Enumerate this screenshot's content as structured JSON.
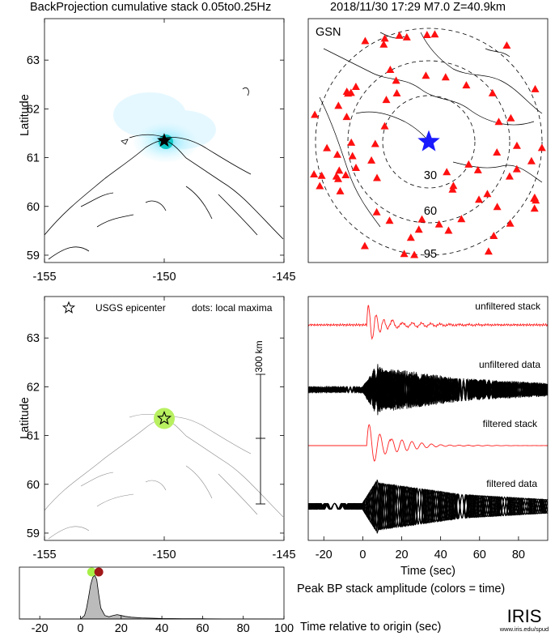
{
  "header": {
    "left_title": "BackProjection cumulative stack 0.05to0.25Hz",
    "right_title": "2018/11/30 17:29  M7.0  Z=40.9km"
  },
  "colors": {
    "station_marker": "#ff1010",
    "epicenter_star_globe": "#1a1aff",
    "stack_trace": "#ff2020",
    "data_trace": "#000000",
    "energy_glow": "#7fe6ff",
    "energy_core": "#10c6c6",
    "local_maximum": "#b8f060",
    "peak_marker_early": "#a8f048",
    "peak_marker_late": "#a01818",
    "amplitude_fill": "#bbbbbb"
  },
  "globe": {
    "network_label": "GSN",
    "ring_labels": [
      "30",
      "60",
      "95"
    ]
  },
  "map_bottom": {
    "legend_epicenter": "USGS epicenter",
    "legend_maxima": "dots: local maxima",
    "scale_bar_label": "300 km"
  },
  "waveforms": {
    "labels": {
      "unfiltered_stack": "unfiltered stack",
      "unfiltered_data": "unfiltered data",
      "filtered_stack": "filtered stack",
      "filtered_data": "filtered data"
    },
    "xlabel": "Time (sec)"
  },
  "amplitude_panel": {
    "caption": "Peak BP stack amplitude (colors = time)",
    "xlabel": "Time relative to origin (sec)"
  },
  "logo": {
    "text": "IRIS",
    "url_text": "www.iris.edu/spud"
  },
  "chart_data": [
    {
      "type": "heatmap",
      "id": "bp-map-top",
      "xlabel": "",
      "ylabel": "Latitude",
      "xlim": [
        -155,
        -145
      ],
      "ylim": [
        58.85,
        63.85
      ],
      "x_ticks": [
        -155,
        -150,
        -145
      ],
      "y_ticks": [
        59,
        60,
        61,
        62,
        63
      ],
      "epicenter": {
        "lon": -150,
        "lat": 61.35
      },
      "energy_peak": {
        "lon": -150.1,
        "lat": 61.4
      }
    },
    {
      "type": "scatter",
      "id": "station-globe",
      "title": "GSN",
      "distance_rings_deg": [
        30,
        60,
        95
      ],
      "epicenter_marker": "blue star",
      "station_count": 80
    },
    {
      "type": "scatter",
      "id": "bp-map-bottom",
      "xlabel": "",
      "ylabel": "Latitude",
      "xlim": [
        -155,
        -145
      ],
      "ylim": [
        58.85,
        63.85
      ],
      "x_ticks": [
        -155,
        -150,
        -145
      ],
      "y_ticks": [
        59,
        60,
        61,
        62,
        63
      ],
      "epicenter": {
        "lon": -150,
        "lat": 61.35
      },
      "local_maxima": [
        {
          "lon": -150,
          "lat": 61.35
        }
      ]
    },
    {
      "type": "line",
      "id": "waveforms",
      "xlabel": "Time (sec)",
      "xlim": [
        -28,
        95
      ],
      "x_ticks": [
        -20,
        0,
        20,
        40,
        60,
        80
      ],
      "series": [
        {
          "name": "unfiltered stack"
        },
        {
          "name": "unfiltered data"
        },
        {
          "name": "filtered stack"
        },
        {
          "name": "filtered data"
        }
      ]
    },
    {
      "type": "area",
      "id": "peak-amplitude",
      "xlabel": "Time relative to origin (sec)",
      "xlim": [
        -30,
        100
      ],
      "x_ticks": [
        -20,
        0,
        20,
        40,
        60,
        80,
        100
      ],
      "x": [
        -30,
        0,
        2,
        3,
        4,
        5,
        6,
        7,
        8,
        9,
        10,
        12,
        14,
        16,
        18,
        20,
        22,
        25,
        30,
        40,
        50,
        60,
        70,
        80,
        100
      ],
      "y": [
        0,
        0,
        0.08,
        0.25,
        0.5,
        0.78,
        0.95,
        1.0,
        0.9,
        0.55,
        0.25,
        0.08,
        0.05,
        0.08,
        0.1,
        0.08,
        0.06,
        0.04,
        0.025,
        0.012,
        0.008,
        0.005,
        0.002,
        0.001,
        0
      ],
      "peak_markers": [
        {
          "time": 5.5,
          "color": "#a8f048"
        },
        {
          "time": 9,
          "color": "#a01818"
        }
      ]
    }
  ]
}
